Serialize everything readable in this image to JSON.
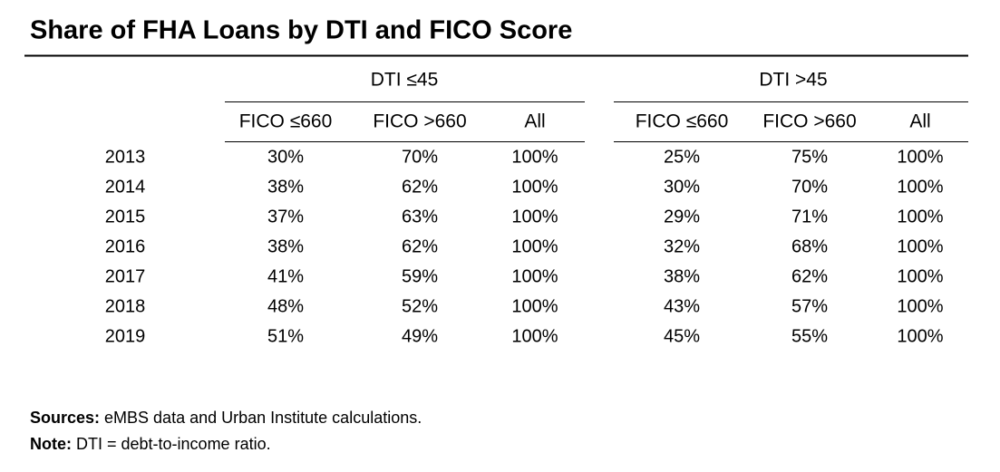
{
  "title": "Share of FHA Loans by DTI and FICO Score",
  "table": {
    "groups": [
      "DTI ≤45",
      "DTI >45"
    ],
    "columns": [
      [
        "FICO ≤660",
        "FICO >660",
        "All"
      ],
      [
        "FICO ≤660",
        "FICO >660",
        "All"
      ]
    ],
    "rows": [
      [
        "2013",
        "30%",
        "70%",
        "100%",
        "25%",
        "75%",
        "100%"
      ],
      [
        "2014",
        "38%",
        "62%",
        "100%",
        "30%",
        "70%",
        "100%"
      ],
      [
        "2015",
        "37%",
        "63%",
        "100%",
        "29%",
        "71%",
        "100%"
      ],
      [
        "2016",
        "38%",
        "62%",
        "100%",
        "32%",
        "68%",
        "100%"
      ],
      [
        "2017",
        "41%",
        "59%",
        "100%",
        "38%",
        "62%",
        "100%"
      ],
      [
        "2018",
        "48%",
        "52%",
        "100%",
        "43%",
        "57%",
        "100%"
      ],
      [
        "2019",
        "51%",
        "49%",
        "100%",
        "45%",
        "55%",
        "100%"
      ]
    ]
  },
  "notes": [
    {
      "label": "Sources:",
      "text": "eMBS data and Urban Institute calculations."
    },
    {
      "label": "Note:",
      "text": "DTI = debt-to-income ratio."
    }
  ]
}
